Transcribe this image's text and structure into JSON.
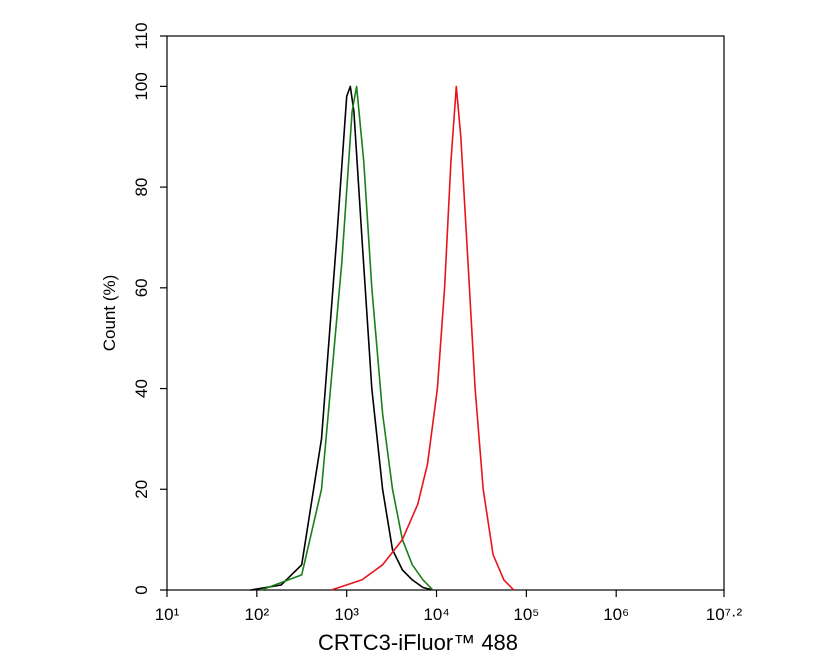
{
  "chart_data": {
    "type": "line",
    "x_label": "CRTC3-iFluor™ 488",
    "y_label": "Count  (%)",
    "x_scale": "log",
    "xlim": [
      10,
      15848931.92
    ],
    "ylim": [
      0,
      110
    ],
    "xticks": [
      {
        "value": 10,
        "label": "10¹"
      },
      {
        "value": 100,
        "label": "10²"
      },
      {
        "value": 1000,
        "label": "10³"
      },
      {
        "value": 10000,
        "label": "10⁴"
      },
      {
        "value": 100000,
        "label": "10⁵"
      },
      {
        "value": 1000000,
        "label": "10⁶"
      },
      {
        "value": 15848931.92,
        "label": "10⁷·²"
      }
    ],
    "yticks": [
      0,
      20,
      40,
      60,
      80,
      100,
      110
    ],
    "series": [
      {
        "color": "#000000",
        "x": [
          85,
          186,
          316,
          525,
          776,
          1000,
          1096,
          1202,
          1479,
          1905,
          2512,
          3236,
          4169,
          5370,
          7079,
          9120
        ],
        "values": [
          0,
          1,
          5,
          30,
          70,
          98,
          100,
          95,
          70,
          40,
          20,
          8,
          4,
          2,
          0.5,
          0
        ]
      },
      {
        "color": "#1a7f1a",
        "x": [
          112,
          316,
          525,
          883,
          1148,
          1288,
          1549,
          1905,
          2512,
          3236,
          4169,
          5370,
          7079,
          9120
        ],
        "values": [
          0,
          3,
          20,
          65,
          95,
          100,
          85,
          60,
          35,
          20,
          10,
          5,
          2,
          0
        ]
      },
      {
        "color": "#e8141c",
        "x": [
          676,
          1479,
          2512,
          4169,
          6166,
          7943,
          10233,
          12303,
          14454,
          16596,
          18621,
          22387,
          26915,
          33113,
          42658,
          56234,
          72444
        ],
        "values": [
          0,
          2,
          5,
          10,
          17,
          25,
          40,
          60,
          85,
          100,
          90,
          65,
          40,
          20,
          7,
          2,
          0
        ]
      }
    ]
  }
}
